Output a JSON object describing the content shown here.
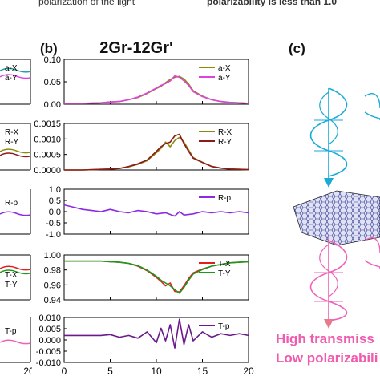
{
  "header": {
    "left_fragment": "polarization of the light",
    "right_fragment": "polarizability is less than 1.0"
  },
  "panel_b": {
    "label": "(b)",
    "title": "2Gr-12Gr'",
    "x_ticks": [
      "0",
      "5",
      "10",
      "15",
      "20"
    ]
  },
  "panel_c": {
    "label": "(c)",
    "caption_line1": "High transmiss",
    "caption_line2": "Low polarizabili",
    "colors": {
      "incident": "#1aaad8",
      "transmitted": "#f060b8",
      "caption": "#f05aaf",
      "sheet": "#2a2f8a"
    }
  },
  "panel_a_partial": {
    "legends": [
      [
        "a-X",
        "a-Y"
      ],
      [
        "R-X",
        "R-Y"
      ],
      [
        "R-p"
      ],
      [
        "T-X",
        "T-Y"
      ],
      [
        "T-p"
      ]
    ],
    "x_tick_right": "20"
  },
  "chart_data": [
    {
      "type": "line",
      "title": "2Gr-12Gr'",
      "xlabel": "",
      "ylabel": "",
      "xlim": [
        0,
        20
      ],
      "ylim": [
        0,
        0.1
      ],
      "yticks": [
        "0.10",
        "0.05",
        "0.00"
      ],
      "series": [
        {
          "name": "a-X",
          "color": "#8b8a10",
          "x": [
            0,
            2,
            4,
            5,
            6,
            7,
            8,
            9,
            10,
            10.5,
            11,
            11.5,
            12,
            12.5,
            13,
            13.5,
            14,
            15,
            16,
            17,
            18,
            19,
            20
          ],
          "y": [
            0.002,
            0.002,
            0.003,
            0.005,
            0.006,
            0.01,
            0.015,
            0.024,
            0.035,
            0.04,
            0.048,
            0.055,
            0.06,
            0.062,
            0.056,
            0.045,
            0.03,
            0.018,
            0.01,
            0.006,
            0.004,
            0.003,
            0.002
          ]
        },
        {
          "name": "a-Y",
          "color": "#e040e0",
          "x": [
            0,
            2,
            4,
            5,
            6,
            7,
            8,
            9,
            10,
            10.5,
            11,
            11.5,
            12,
            12.5,
            13,
            13.5,
            14,
            15,
            16,
            17,
            18,
            19,
            20
          ],
          "y": [
            0.002,
            0.002,
            0.003,
            0.005,
            0.006,
            0.01,
            0.016,
            0.025,
            0.036,
            0.042,
            0.046,
            0.052,
            0.063,
            0.06,
            0.052,
            0.042,
            0.028,
            0.017,
            0.01,
            0.006,
            0.004,
            0.003,
            0.002
          ]
        }
      ]
    },
    {
      "type": "line",
      "xlim": [
        0,
        20
      ],
      "ylim": [
        0,
        0.0015
      ],
      "yticks": [
        "0.0015",
        "0.0010",
        "0.0005",
        "0.0000"
      ],
      "series": [
        {
          "name": "R-X",
          "color": "#8b8a10",
          "x": [
            0,
            2,
            4,
            5,
            6,
            7,
            8,
            9,
            10,
            10.5,
            11,
            11.5,
            12,
            12.5,
            13,
            13.5,
            14,
            15,
            16,
            17,
            18,
            19,
            20
          ],
          "y": [
            0.0,
            0.0,
            2e-05,
            3e-05,
            5e-05,
            0.0001,
            0.00018,
            0.0003,
            0.00055,
            0.0007,
            0.0009,
            0.00075,
            0.00095,
            0.00105,
            0.0009,
            0.00065,
            0.0004,
            0.00025,
            0.00012,
            6e-05,
            3e-05,
            2e-05,
            1e-05
          ]
        },
        {
          "name": "R-Y",
          "color": "#8b1a1a",
          "x": [
            0,
            2,
            4,
            5,
            6,
            7,
            8,
            9,
            10,
            10.5,
            11,
            11.5,
            12,
            12.5,
            13,
            13.5,
            14,
            15,
            16,
            17,
            18,
            19,
            20
          ],
          "y": [
            0.0,
            0.0,
            2e-05,
            3e-05,
            5e-05,
            0.00011,
            0.0002,
            0.00032,
            0.0006,
            0.00075,
            0.00085,
            0.0009,
            0.0011,
            0.00115,
            0.00085,
            0.0006,
            0.00038,
            0.00024,
            0.00011,
            6e-05,
            3e-05,
            2e-05,
            1e-05
          ]
        }
      ]
    },
    {
      "type": "line",
      "xlim": [
        0,
        20
      ],
      "ylim": [
        -1.0,
        1.0
      ],
      "yticks": [
        "1.0",
        "0.5",
        "0.0",
        "-0.5",
        "-1.0"
      ],
      "series": [
        {
          "name": "R-p",
          "color": "#8a2be2",
          "x": [
            0,
            1,
            2,
            3,
            4,
            5,
            6,
            7,
            8,
            9,
            10,
            11,
            12,
            12.5,
            13,
            14,
            15,
            16,
            17,
            18,
            19,
            20
          ],
          "y": [
            0.3,
            0.2,
            0.1,
            0.05,
            0.0,
            0.1,
            0.0,
            -0.05,
            0.05,
            0.0,
            -0.1,
            -0.05,
            -0.2,
            0.0,
            -0.15,
            -0.1,
            0.0,
            -0.05,
            0.0,
            -0.05,
            0.0,
            -0.05
          ]
        }
      ]
    },
    {
      "type": "line",
      "xlim": [
        0,
        20
      ],
      "ylim": [
        0.93,
        1.01
      ],
      "yticks": [
        "1.00",
        "0.98",
        "0.96",
        "0.94"
      ],
      "series": [
        {
          "name": "T-X",
          "color": "#e02020",
          "x": [
            0,
            2,
            4,
            5,
            6,
            7,
            8,
            9,
            10,
            10.5,
            11,
            11.5,
            12,
            12.5,
            13,
            13.5,
            14,
            15,
            16,
            17,
            18,
            19,
            20
          ],
          "y": [
            0.999,
            0.999,
            0.999,
            0.998,
            0.997,
            0.995,
            0.99,
            0.982,
            0.97,
            0.963,
            0.955,
            0.96,
            0.945,
            0.944,
            0.955,
            0.968,
            0.978,
            0.985,
            0.99,
            0.993,
            0.996,
            0.997,
            0.998
          ]
        },
        {
          "name": "T-Y",
          "color": "#1a9a1a",
          "x": [
            0,
            2,
            4,
            5,
            6,
            7,
            8,
            9,
            10,
            10.5,
            11,
            11.5,
            12,
            12.5,
            13,
            13.5,
            14,
            15,
            16,
            17,
            18,
            19,
            20
          ],
          "y": [
            0.999,
            0.999,
            0.999,
            0.998,
            0.997,
            0.995,
            0.991,
            0.983,
            0.972,
            0.965,
            0.96,
            0.955,
            0.948,
            0.942,
            0.952,
            0.965,
            0.976,
            0.984,
            0.99,
            0.993,
            0.996,
            0.997,
            0.998
          ]
        }
      ]
    },
    {
      "type": "line",
      "xlim": [
        0,
        20
      ],
      "ylim": [
        -0.015,
        0.01
      ],
      "yticks": [
        "0.010",
        "0.005",
        "0.000",
        "-0.005",
        "-0.010"
      ],
      "x_ticks": [
        "0",
        "5",
        "10",
        "15",
        "20"
      ],
      "series": [
        {
          "name": "T-p",
          "color": "#6a1a8a",
          "x": [
            0,
            1,
            2,
            3,
            4,
            5,
            6,
            7,
            8,
            9,
            10,
            10.5,
            11,
            11.5,
            12,
            12.5,
            13,
            13.5,
            14,
            15,
            16,
            17,
            18,
            19,
            20
          ],
          "y": [
            0.0,
            0.0,
            0.0,
            0.0,
            0.0,
            0.0005,
            -0.001,
            0.0,
            -0.0015,
            0.002,
            -0.004,
            0.004,
            -0.003,
            0.006,
            -0.007,
            0.009,
            -0.005,
            0.006,
            -0.003,
            0.002,
            -0.001,
            0.001,
            0.0,
            0.001,
            0.0
          ]
        }
      ]
    }
  ]
}
